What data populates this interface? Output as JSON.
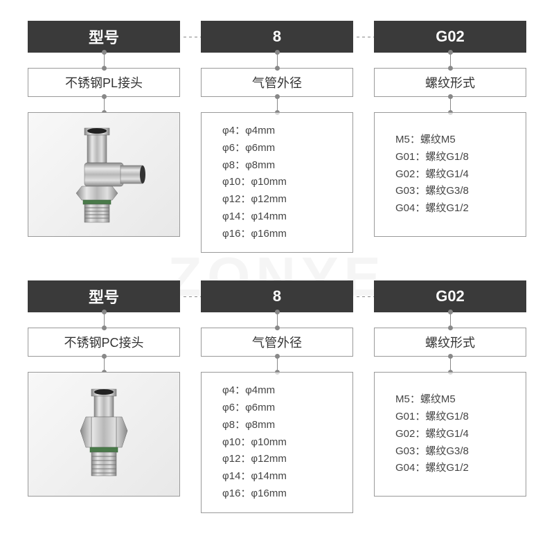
{
  "watermark": "ZONYE",
  "sections": [
    {
      "headers": [
        "型号",
        "8",
        "G02"
      ],
      "subs": [
        "不锈钢PL接头",
        "气管外径",
        "螺纹形式"
      ],
      "diameter_specs": [
        "φ4：φ4mm",
        "φ6：φ6mm",
        "φ8：φ8mm",
        "φ10：φ10mm",
        "φ12：φ12mm",
        "φ14：φ14mm",
        "φ16：φ16mm"
      ],
      "thread_specs": [
        "M5：螺纹M5",
        "G01：螺纹G1/8",
        "G02：螺纹G1/4",
        "G03：螺纹G3/8",
        "G04：螺纹G1/2"
      ],
      "fitting_type": "elbow"
    },
    {
      "headers": [
        "型号",
        "8",
        "G02"
      ],
      "subs": [
        "不锈钢PC接头",
        "气管外径",
        "螺纹形式"
      ],
      "diameter_specs": [
        "φ4：φ4mm",
        "φ6：φ6mm",
        "φ8：φ8mm",
        "φ10：φ10mm",
        "φ12：φ12mm",
        "φ14：φ14mm",
        "φ16：φ16mm"
      ],
      "thread_specs": [
        "M5：螺纹M5",
        "G01：螺纹G1/8",
        "G02：螺纹G1/4",
        "G03：螺纹G3/8",
        "G04：螺纹G1/2"
      ],
      "fitting_type": "straight"
    }
  ],
  "colors": {
    "header_bg": "#3a3a3a",
    "header_text": "#ffffff",
    "border": "#999999",
    "text": "#333333",
    "metal_light": "#d8d8d8",
    "metal_mid": "#b0b0b0",
    "metal_dark": "#808080",
    "oring": "#4a7a4a"
  }
}
